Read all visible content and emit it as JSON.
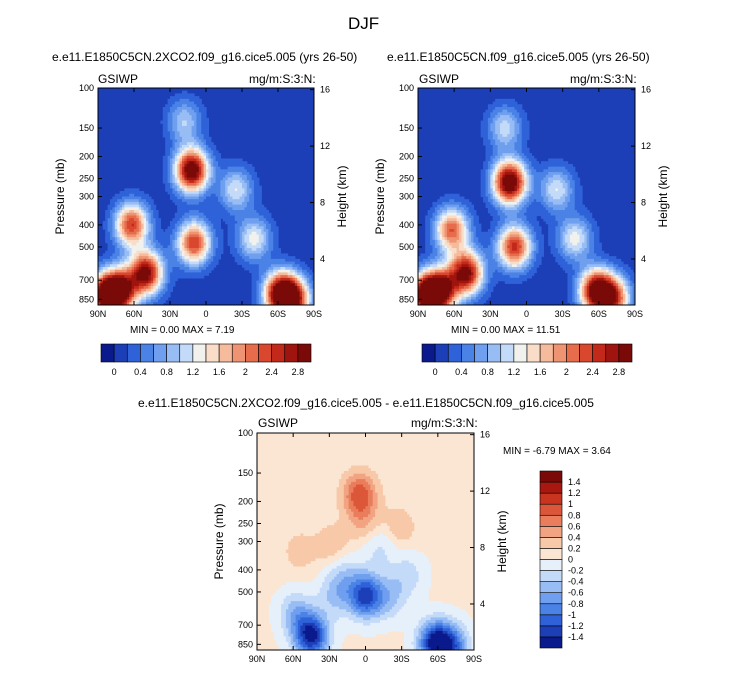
{
  "page": {
    "season_title": "DJF"
  },
  "chart_data": [
    {
      "type": "heatmap",
      "title": "e.e11.E1850C5CN.2XCO2.f09_g16.cice5.005 (yrs 26-50)",
      "left_label": "GSIWP",
      "right_label": "mg/m:S:3:N:",
      "xlabel": "",
      "ylabel": "Pressure (mb)",
      "y2label": "Height (km)",
      "x_ticks": [
        "90N",
        "60N",
        "30N",
        "0",
        "30S",
        "60S",
        "90S"
      ],
      "y_ticks": [
        "100",
        "150",
        "200",
        "250",
        "300",
        "400",
        "500",
        "700",
        "850"
      ],
      "y2_ticks": [
        "4",
        "8",
        "12",
        "16"
      ],
      "min_text": "MIN =   0.00  MAX =   7.19",
      "min": 0.0,
      "max": 7.19,
      "features": [
        {
          "lat": 12,
          "p": 230,
          "value": 3.2
        },
        {
          "lat": 10,
          "p": 480,
          "value": 2.4
        },
        {
          "lat": 18,
          "p": 140,
          "value": 1.0
        },
        {
          "lat": 62,
          "p": 400,
          "value": 2.4
        },
        {
          "lat": 50,
          "p": 650,
          "value": 2.9
        },
        {
          "lat": 72,
          "p": 780,
          "value": 3.0
        },
        {
          "lat": 85,
          "p": 820,
          "value": 2.6
        },
        {
          "lat": -62,
          "p": 800,
          "value": 2.9
        },
        {
          "lat": -73,
          "p": 850,
          "value": 2.4
        },
        {
          "lat": -25,
          "p": 280,
          "value": 1.2
        },
        {
          "lat": -40,
          "p": 460,
          "value": 1.3
        }
      ]
    },
    {
      "type": "heatmap",
      "title": "e.e11.E1850C5CN.f09_g16.cice5.005 (yrs 26-50)",
      "left_label": "GSIWP",
      "right_label": "mg/m:S:3:N:",
      "xlabel": "",
      "ylabel": "Pressure (mb)",
      "y2label": "Height (km)",
      "x_ticks": [
        "90N",
        "60N",
        "30N",
        "0",
        "30S",
        "60S",
        "90S"
      ],
      "y_ticks": [
        "100",
        "150",
        "200",
        "250",
        "300",
        "400",
        "500",
        "700",
        "850"
      ],
      "y2_ticks": [
        "4",
        "8",
        "12",
        "16"
      ],
      "min_text": "MIN =   0.00  MAX = 11.51",
      "min": 0.0,
      "max": 11.51,
      "features": [
        {
          "lat": 14,
          "p": 260,
          "value": 3.3
        },
        {
          "lat": 10,
          "p": 500,
          "value": 2.5
        },
        {
          "lat": 18,
          "p": 150,
          "value": 1.1
        },
        {
          "lat": 62,
          "p": 420,
          "value": 2.2
        },
        {
          "lat": 50,
          "p": 650,
          "value": 2.9
        },
        {
          "lat": 72,
          "p": 780,
          "value": 3.0
        },
        {
          "lat": 85,
          "p": 820,
          "value": 2.6
        },
        {
          "lat": -58,
          "p": 780,
          "value": 3.0
        },
        {
          "lat": -72,
          "p": 840,
          "value": 2.2
        },
        {
          "lat": -25,
          "p": 280,
          "value": 1.2
        },
        {
          "lat": -40,
          "p": 460,
          "value": 1.3
        }
      ]
    },
    {
      "type": "heatmap",
      "title": "e.e11.E1850C5CN.2XCO2.f09_g16.cice5.005 - e.e11.E1850C5CN.f09_g16.cice5.005",
      "left_label": "GSIWP",
      "right_label": "mg/m:S:3:N:",
      "xlabel": "",
      "ylabel": "Pressure (mb)",
      "y2label": "Height (km)",
      "x_ticks": [
        "90N",
        "60N",
        "30N",
        "0",
        "30S",
        "60S",
        "90S"
      ],
      "y_ticks": [
        "100",
        "150",
        "200",
        "250",
        "300",
        "400",
        "500",
        "700",
        "850"
      ],
      "y2_ticks": [
        "4",
        "8",
        "12",
        "16"
      ],
      "min_text": "MIN =  -6.79  MAX =   3.64",
      "min": -6.79,
      "max": 3.64,
      "features": [
        {
          "lat": 45,
          "p": 780,
          "value": -1.5
        },
        {
          "lat": 58,
          "p": 620,
          "value": -0.5
        },
        {
          "lat": 0,
          "p": 520,
          "value": -1.3
        },
        {
          "lat": 25,
          "p": 520,
          "value": -0.4
        },
        {
          "lat": -20,
          "p": 530,
          "value": -0.4
        },
        {
          "lat": -58,
          "p": 840,
          "value": -1.5
        },
        {
          "lat": -72,
          "p": 870,
          "value": -0.9
        },
        {
          "lat": 5,
          "p": 185,
          "value": 0.9
        },
        {
          "lat": 2,
          "p": 240,
          "value": 0.4
        },
        {
          "lat": 28,
          "p": 310,
          "value": 0.35
        },
        {
          "lat": -28,
          "p": 260,
          "value": 0.35
        },
        {
          "lat": 55,
          "p": 330,
          "value": 0.3
        },
        {
          "lat": -12,
          "p": 320,
          "value": -0.25
        },
        {
          "lat": 18,
          "p": 420,
          "value": -0.3
        },
        {
          "lat": -35,
          "p": 420,
          "value": -0.3
        }
      ]
    }
  ],
  "colorbar_top": {
    "colors": [
      "#0a1a8c",
      "#1c3fb8",
      "#2f62d9",
      "#4a82e6",
      "#6f9fee",
      "#98bdf5",
      "#c4daf9",
      "#f1f1ee",
      "#f9ddc8",
      "#f5bb9c",
      "#ee9472",
      "#e66c4c",
      "#d9472f",
      "#c2291b",
      "#a0140f",
      "#7a0a08"
    ],
    "labels": [
      "0",
      "0.4",
      "0.8",
      "1.2",
      "1.6",
      "2",
      "2.4",
      "2.8"
    ],
    "levels": [
      0,
      0.2,
      0.4,
      0.6,
      0.8,
      1.0,
      1.2,
      1.4,
      1.6,
      1.8,
      2.0,
      2.2,
      2.4,
      2.6,
      2.8,
      3.0
    ]
  },
  "colorbar_diff": {
    "colors": [
      "#0a1a8c",
      "#1c3fb8",
      "#2f62d9",
      "#4a82e6",
      "#6f9fee",
      "#98bdf5",
      "#c4daf9",
      "#e6f0fb",
      "#fbe6d3",
      "#f8c9a9",
      "#f2a482",
      "#ea7d5c",
      "#dc5739",
      "#c9341f",
      "#a81811",
      "#7a0a08"
    ],
    "labels": [
      "-1.4",
      "-1.2",
      "-1",
      "-0.8",
      "-0.6",
      "-0.4",
      "-0.2",
      "0",
      "0.2",
      "0.4",
      "0.6",
      "0.8",
      "1",
      "1.2",
      "1.4"
    ],
    "levels": [
      -1.4,
      -1.2,
      -1.0,
      -0.8,
      -0.6,
      -0.4,
      -0.2,
      0,
      0.2,
      0.4,
      0.6,
      0.8,
      1.0,
      1.2,
      1.4
    ]
  }
}
